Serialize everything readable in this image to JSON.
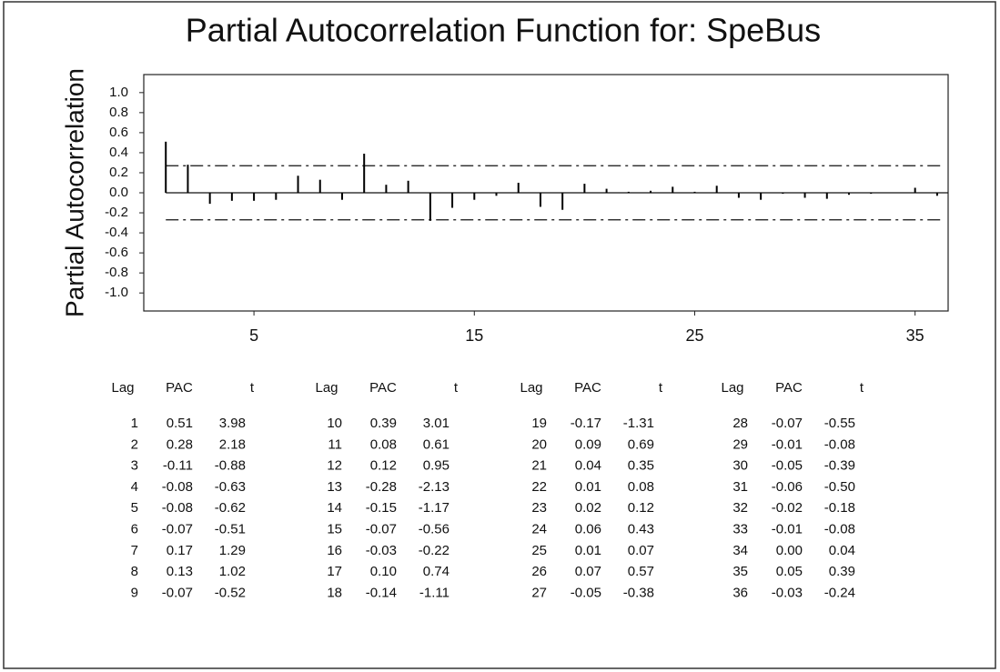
{
  "chart_data": {
    "type": "bar",
    "title": "Partial Autocorrelation Function for: SpeBus",
    "y_label": "Partial Autocorrelation",
    "x": [
      1,
      2,
      3,
      4,
      5,
      6,
      7,
      8,
      9,
      10,
      11,
      12,
      13,
      14,
      15,
      16,
      17,
      18,
      19,
      20,
      21,
      22,
      23,
      24,
      25,
      26,
      27,
      28,
      29,
      30,
      31,
      32,
      33,
      34,
      35,
      36
    ],
    "values": [
      0.51,
      0.28,
      -0.11,
      -0.08,
      -0.08,
      -0.07,
      0.17,
      0.13,
      -0.07,
      0.39,
      0.08,
      0.12,
      -0.28,
      -0.15,
      -0.07,
      -0.03,
      0.1,
      -0.14,
      -0.17,
      0.09,
      0.04,
      0.01,
      0.02,
      0.06,
      0.01,
      0.07,
      -0.05,
      -0.07,
      -0.01,
      -0.05,
      -0.06,
      -0.02,
      -0.01,
      0.0,
      0.05,
      -0.03
    ],
    "color": "#000000",
    "confidence_limits": [
      -0.27,
      0.27
    ],
    "xlim": [
      0,
      36.5
    ],
    "xticks": [
      5,
      15,
      25,
      35
    ],
    "ylim": [
      -1.18,
      1.18
    ],
    "yticks": [
      {
        "value": 1.0,
        "label": "1.0"
      },
      0.8,
      0.6,
      0.4,
      0.2,
      {
        "value": 0.0,
        "label": "0.0"
      },
      -0.2,
      -0.4,
      -0.6,
      -0.8,
      {
        "value": -1.0,
        "label": "-1.0"
      }
    ]
  },
  "table": {
    "columns": [
      "Lag",
      "PAC",
      "t"
    ],
    "rows": [
      [
        "1",
        "0.51",
        "3.98"
      ],
      [
        "2",
        "0.28",
        "2.18"
      ],
      [
        "3",
        "-0.11",
        "-0.88"
      ],
      [
        "4",
        "-0.08",
        "-0.63"
      ],
      [
        "5",
        "-0.08",
        "-0.62"
      ],
      [
        "6",
        "-0.07",
        "-0.51"
      ],
      [
        "7",
        "0.17",
        "1.29"
      ],
      [
        "8",
        "0.13",
        "1.02"
      ],
      [
        "9",
        "-0.07",
        "-0.52"
      ],
      [
        "10",
        "0.39",
        "3.01"
      ],
      [
        "11",
        "0.08",
        "0.61"
      ],
      [
        "12",
        "0.12",
        "0.95"
      ],
      [
        "13",
        "-0.28",
        "-2.13"
      ],
      [
        "14",
        "-0.15",
        "-1.17"
      ],
      [
        "15",
        "-0.07",
        "-0.56"
      ],
      [
        "16",
        "-0.03",
        "-0.22"
      ],
      [
        "17",
        "0.10",
        "0.74"
      ],
      [
        "18",
        "-0.14",
        "-1.11"
      ],
      [
        "19",
        "-0.17",
        "-1.31"
      ],
      [
        "20",
        "0.09",
        "0.69"
      ],
      [
        "21",
        "0.04",
        "0.35"
      ],
      [
        "22",
        "0.01",
        "0.08"
      ],
      [
        "23",
        "0.02",
        "0.12"
      ],
      [
        "24",
        "0.06",
        "0.43"
      ],
      [
        "25",
        "0.01",
        "0.07"
      ],
      [
        "26",
        "0.07",
        "0.57"
      ],
      [
        "27",
        "-0.05",
        "-0.38"
      ],
      [
        "28",
        "-0.07",
        "-0.55"
      ],
      [
        "29",
        "-0.01",
        "-0.08"
      ],
      [
        "30",
        "-0.05",
        "-0.39"
      ],
      [
        "31",
        "-0.06",
        "-0.50"
      ],
      [
        "32",
        "-0.02",
        "-0.18"
      ],
      [
        "33",
        "-0.01",
        "-0.08"
      ],
      [
        "34",
        "0.00",
        "0.04"
      ],
      [
        "35",
        "0.05",
        "0.39"
      ],
      [
        "36",
        "-0.03",
        "-0.24"
      ]
    ]
  }
}
